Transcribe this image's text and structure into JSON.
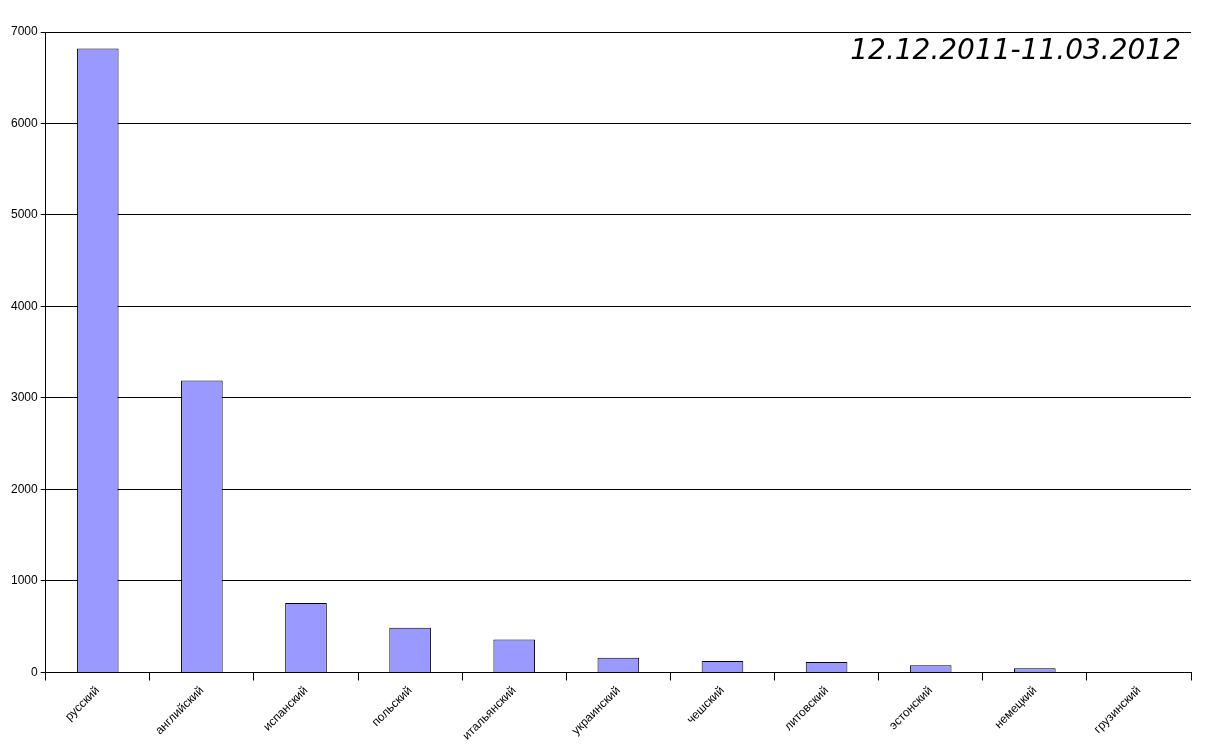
{
  "chart_data": {
    "type": "bar",
    "categories": [
      "русский",
      "английский",
      "испанский",
      "польский",
      "итальянский",
      "украинский",
      "чешский",
      "литовский",
      "эстонский",
      "немецкий",
      "грузинский"
    ],
    "values": [
      6820,
      3190,
      760,
      490,
      360,
      160,
      125,
      115,
      80,
      45,
      0
    ],
    "color": "#9999ff",
    "ylim": [
      0,
      7000
    ],
    "yticks": [
      0,
      1000,
      2000,
      3000,
      4000,
      5000,
      6000,
      7000
    ],
    "grid": "y",
    "legend": false,
    "annotations": [
      "12.12.2011-11.03.2012"
    ]
  }
}
